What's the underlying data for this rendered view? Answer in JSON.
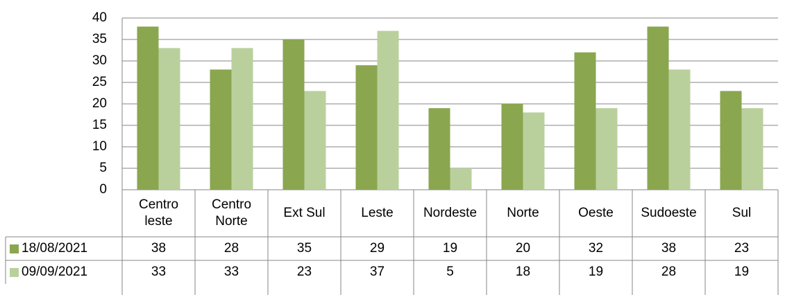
{
  "chart_data": {
    "type": "bar",
    "categories": [
      "Centro leste",
      "Centro Norte",
      "Ext Sul",
      "Leste",
      "Nordeste",
      "Norte",
      "Oeste",
      "Sudoeste",
      "Sul"
    ],
    "series": [
      {
        "name": "18/08/2021",
        "color": "#8aa64f",
        "values": [
          38,
          28,
          35,
          29,
          19,
          20,
          32,
          38,
          23
        ]
      },
      {
        "name": "09/09/2021",
        "color": "#bad09c",
        "values": [
          33,
          33,
          23,
          37,
          5,
          18,
          19,
          28,
          19
        ]
      }
    ],
    "ylim": [
      0,
      40
    ],
    "yticks": [
      0,
      5,
      10,
      15,
      20,
      25,
      30,
      35,
      40
    ],
    "grid": true,
    "legend": "data-table"
  }
}
